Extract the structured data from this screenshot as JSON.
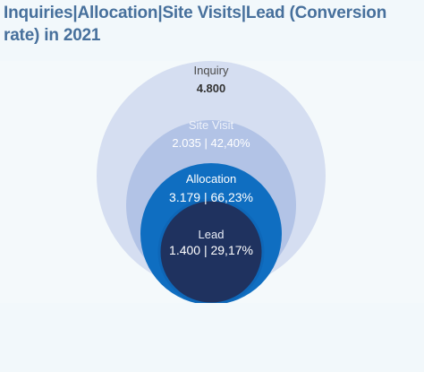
{
  "title": "Inquiries|Allocation|Site Visits|Lead (Conversion rate) in 2021",
  "chart_data": {
    "type": "nested-circles",
    "title": "Inquiries|Allocation|Site Visits|Lead (Conversion rate) in 2021",
    "stages": [
      {
        "name": "Inquiry",
        "value": "4.800",
        "label": "4.800",
        "color": "#d5def1",
        "label_color": "#4b4b4b",
        "value_color": "#333333"
      },
      {
        "name": "Site Visit",
        "value": "2.035",
        "rate": "42,40%",
        "label": "2.035 | 42,40%",
        "color": "#b2c3e6",
        "label_color": "#eef2fa",
        "value_color": "#ffffff"
      },
      {
        "name": "Allocation",
        "value": "3.179",
        "rate": "66,23%",
        "label": "3.179 | 66,23%",
        "color": "#0f6ec1",
        "label_color": "#ffffff",
        "value_color": "#ffffff"
      },
      {
        "name": "Lead",
        "value": "1.400",
        "rate": "29,17%",
        "label": "1.400 | 29,17%",
        "color": "#1f325f",
        "label_color": "#e8edf7",
        "value_color": "#ffffff"
      }
    ]
  }
}
